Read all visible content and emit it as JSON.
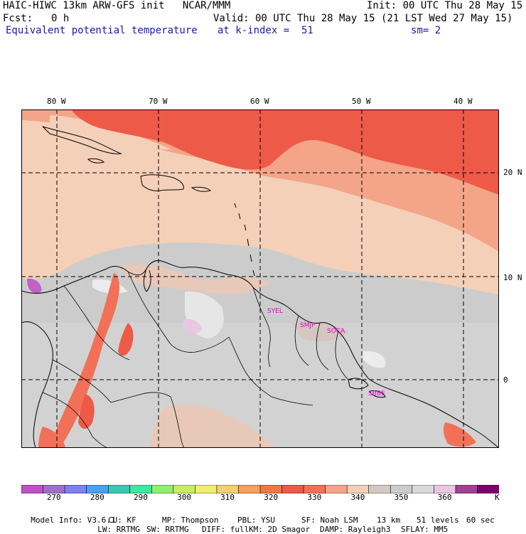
{
  "header": {
    "title_left": "HAIC-HIWC 13km ARW-GFS init   NCAR/MMM",
    "init": "Init: 00 UTC Thu 28 May 15",
    "fcst_label": "Fcst:",
    "fcst_value": "0 h",
    "valid": "Valid: 00 UTC Thu 28 May 15 (21 LST Wed 27 May 15)",
    "field": "Equivalent potential temperature",
    "level": "at k-index =  51",
    "smooth": "sm= 2"
  },
  "map": {
    "lon_labels": [
      "80 W",
      "70 W",
      "60 W",
      "50 W",
      "40 W"
    ],
    "lat_labels": [
      "20 N",
      "10 N",
      "0"
    ],
    "stations": [
      "SYEL",
      "SMJP",
      "SOCA",
      "SBBE"
    ]
  },
  "colorbar": {
    "colors": [
      "#c050c8",
      "#9e70c8",
      "#8080ee",
      "#4ca0ee",
      "#38c8b0",
      "#3ce8a0",
      "#90ee70",
      "#c8ee60",
      "#eeee70",
      "#f0d070",
      "#f4a060",
      "#f07848",
      "#ee5a48",
      "#f27058",
      "#f4a488",
      "#f4d0b8",
      "#d4c8c4",
      "#cccccc",
      "#dadada",
      "#e8c8e0",
      "#a04090",
      "#7a0070"
    ],
    "labels": [
      "270",
      "280",
      "290",
      "300",
      "310",
      "320",
      "330",
      "340",
      "350",
      "360",
      "K"
    ]
  },
  "model_info": {
    "line1": [
      "Model Info: V3.6.1",
      "CU: KF",
      "MP: Thompson",
      "PBL: YSU",
      "SF: Noah LSM",
      "13 km",
      "51 levels",
      "60 sec"
    ],
    "line2": [
      "LW: RRTMG",
      "SW: RRTMG",
      "DIFF: full",
      "KM: 2D Smagor",
      "DAMP: Rayleigh3",
      "SFLAY: MM5"
    ]
  }
}
